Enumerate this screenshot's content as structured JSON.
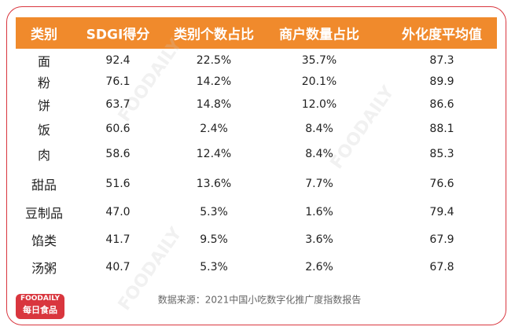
{
  "table": {
    "header": [
      "类别",
      "SDGI得分",
      "类别个数占比",
      "商户数量占比",
      "外化度平均值"
    ],
    "rows": [
      [
        "面",
        "92.4",
        "22.5%",
        "35.7%",
        "87.3"
      ],
      [
        "粉",
        "76.1",
        "14.2%",
        "20.1%",
        "89.9"
      ],
      [
        "饼",
        "63.7",
        "14.8%",
        "12.0%",
        "86.6"
      ],
      [
        "饭",
        "60.6",
        "2.4%",
        "8.4%",
        "88.1"
      ],
      [
        "肉",
        "58.6",
        "12.4%",
        "8.4%",
        "85.3"
      ],
      [
        "甜品",
        "51.6",
        "13.6%",
        "7.7%",
        "76.6"
      ],
      [
        "豆制品",
        "47.0",
        "5.3%",
        "1.6%",
        "79.4"
      ],
      [
        "馅类",
        "41.7",
        "9.5%",
        "3.6%",
        "67.9"
      ],
      [
        "汤粥",
        "40.7",
        "5.3%",
        "2.6%",
        "67.8"
      ]
    ]
  },
  "source": "数据来源：2021中国小吃数字化推广度指数报告",
  "logo": {
    "brand": "FOODAILY",
    "name": "每日食品"
  }
}
